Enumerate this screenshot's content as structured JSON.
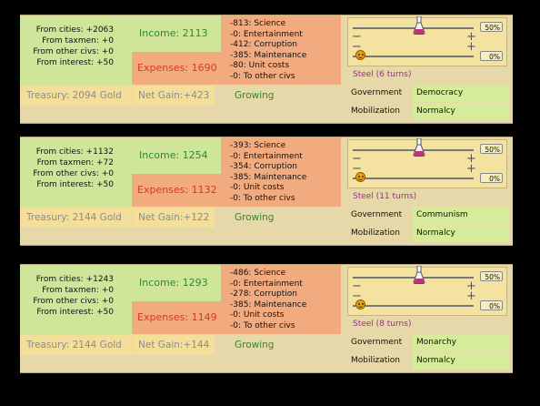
{
  "panels": [
    {
      "sources": [
        "From cities: +2063",
        "From taxmen: +0",
        "From other civs: +0",
        "From interest: +50"
      ],
      "income": "Income: 2113",
      "expenses": "Expenses: 1690",
      "expense_items": [
        "-813: Science",
        "-0: Entertainment",
        "-412: Corruption",
        "-385: Maintenance",
        "-80: Unit costs",
        "-0: To other civs"
      ],
      "treasury": "Treasury: 2094 Gold",
      "net_gain": "Net Gain:+423",
      "status": "Growing",
      "slider_top_pct": "50%",
      "slider_bottom_pct": "0%",
      "steel": "Steel (6 turns)",
      "government_label": "Government",
      "government": "Democracy",
      "mobilization_label": "Mobilization",
      "mobilization": "Normalcy"
    },
    {
      "sources": [
        "From cities: +1132",
        "From taxmen: +72",
        "From other civs: +0",
        "From interest: +50"
      ],
      "income": "Income: 1254",
      "expenses": "Expenses: 1132",
      "expense_items": [
        "-393: Science",
        "-0: Entertainment",
        "-354: Corruption",
        "-385: Maintenance",
        "-0: Unit costs",
        "-0: To other civs"
      ],
      "treasury": "Treasury: 2144 Gold",
      "net_gain": "Net Gain:+122",
      "status": "Growing",
      "slider_top_pct": "50%",
      "slider_bottom_pct": "0%",
      "steel": "Steel (11 turns)",
      "government_label": "Government",
      "government": "Communism",
      "mobilization_label": "Mobilization",
      "mobilization": "Normalcy"
    },
    {
      "sources": [
        "From cities: +1243",
        "From taxmen: +0",
        "From other civs: +0",
        "From interest: +50"
      ],
      "income": "Income: 1293",
      "expenses": "Expenses: 1149",
      "expense_items": [
        "-486: Science",
        "-0: Entertainment",
        "-278: Corruption",
        "-385: Maintenance",
        "-0: Unit costs",
        "-0: To other civs"
      ],
      "treasury": "Treasury: 2144 Gold",
      "net_gain": "Net Gain:+144",
      "status": "Growing",
      "slider_top_pct": "50%",
      "slider_bottom_pct": "0%",
      "steel": "Steel (8 turns)",
      "government_label": "Government",
      "government": "Monarchy",
      "mobilization_label": "Mobilization",
      "mobilization": "Normalcy"
    }
  ],
  "icons": {
    "science_slider": "flask-icon",
    "luxury_slider": "smiley-face-icon"
  },
  "colors": {
    "income_bg": "#cfe69a",
    "expenses_bg": "#f2ab7f",
    "income_text": "#2e8b2e",
    "expenses_text": "#d7372a",
    "steel_text": "#a02a9a"
  }
}
